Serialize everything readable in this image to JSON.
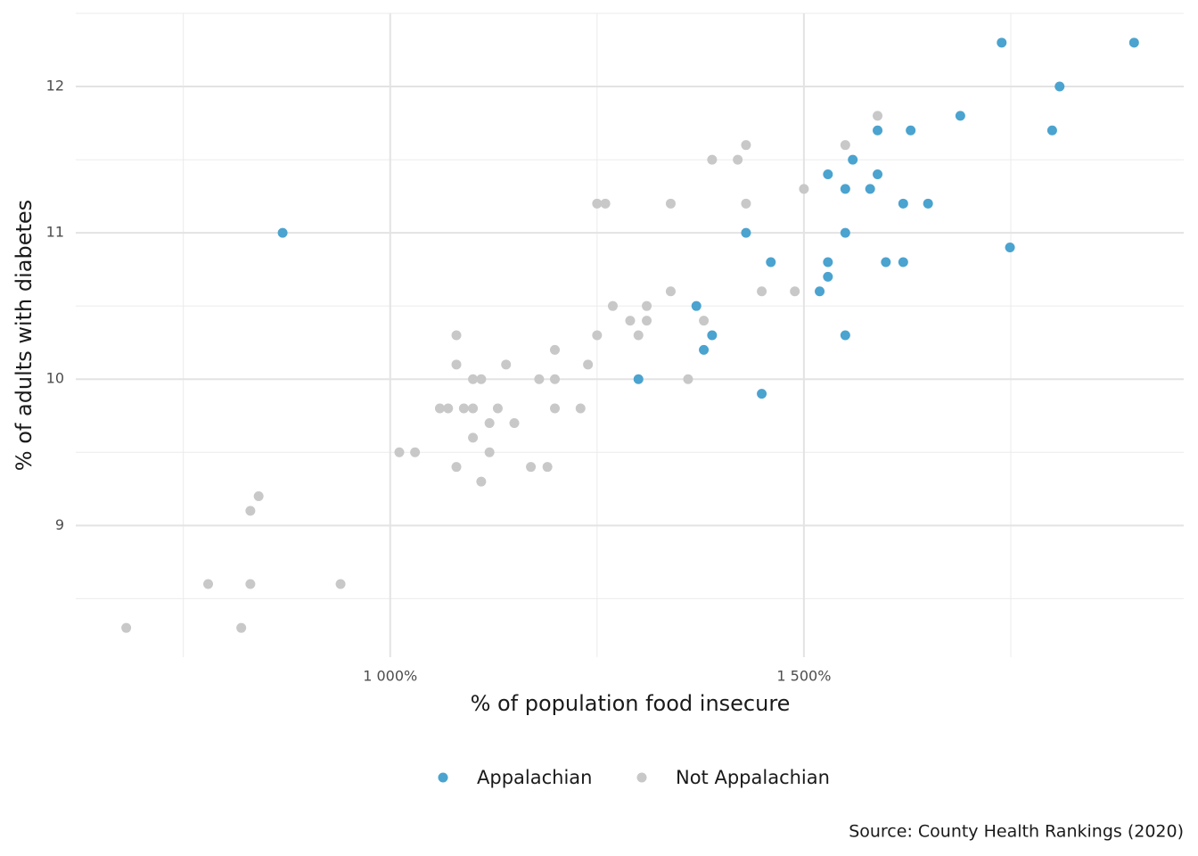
{
  "chart_data": {
    "type": "scatter",
    "x_label": "% of population food insecure",
    "y_label": "% of adults with diabetes",
    "caption": "Source: County Health Rankings (2020)",
    "xlim": [
      620,
      1959
    ],
    "ylim": [
      8.1,
      12.5
    ],
    "xticks": [
      {
        "value": 1000,
        "label": "1 000%"
      },
      {
        "value": 1500,
        "label": "1 500%"
      }
    ],
    "yticks": [
      9,
      10,
      11,
      12
    ],
    "xminor": [
      750,
      1250,
      1750
    ],
    "yminor": [
      8.5,
      9.5,
      10.5,
      11.5,
      12.5
    ],
    "grid": true,
    "legend": "bottom",
    "series": [
      {
        "name": "Appalachian",
        "color": "#4ba3cf",
        "x": [
          870,
          1739,
          1899,
          1809,
          1800,
          1689,
          1749,
          1589,
          1629,
          1559,
          1529,
          1589,
          1550,
          1580,
          1620,
          1650,
          1430,
          1550,
          1460,
          1529,
          1599,
          1620,
          1529,
          1519,
          1370,
          1389,
          1550,
          1379,
          1300,
          1449
        ],
        "values": [
          11.0,
          12.3,
          12.3,
          12.0,
          11.7,
          11.8,
          10.9,
          11.7,
          11.7,
          11.5,
          11.4,
          11.4,
          11.3,
          11.3,
          11.2,
          11.2,
          11.0,
          11.0,
          10.8,
          10.8,
          10.8,
          10.8,
          10.7,
          10.6,
          10.5,
          10.3,
          10.3,
          10.2,
          10.0,
          9.9
        ]
      },
      {
        "name": "Not Appalachian",
        "color": "#c8c8c8",
        "x": [
          681,
          820,
          780,
          831,
          940,
          831,
          841,
          1011,
          1030,
          1120,
          1080,
          1170,
          1190,
          1110,
          1100,
          1120,
          1150,
          1060,
          1070,
          1089,
          1100,
          1130,
          1199,
          1230,
          1100,
          1110,
          1180,
          1199,
          1360,
          1080,
          1140,
          1239,
          1199,
          1080,
          1250,
          1300,
          1290,
          1310,
          1379,
          1269,
          1310,
          1339,
          1449,
          1489,
          1250,
          1260,
          1339,
          1430,
          1500,
          1389,
          1420,
          1430,
          1550,
          1589
        ],
        "values": [
          8.3,
          8.3,
          8.6,
          8.6,
          8.6,
          9.1,
          9.2,
          9.5,
          9.5,
          9.5,
          9.4,
          9.4,
          9.4,
          9.3,
          9.6,
          9.7,
          9.7,
          9.8,
          9.8,
          9.8,
          9.8,
          9.8,
          9.8,
          9.8,
          10.0,
          10.0,
          10.0,
          10.0,
          10.0,
          10.1,
          10.1,
          10.1,
          10.2,
          10.3,
          10.3,
          10.3,
          10.4,
          10.4,
          10.4,
          10.5,
          10.5,
          10.6,
          10.6,
          10.6,
          11.2,
          11.2,
          11.2,
          11.2,
          11.3,
          11.5,
          11.5,
          11.6,
          11.6,
          11.8
        ]
      }
    ]
  }
}
